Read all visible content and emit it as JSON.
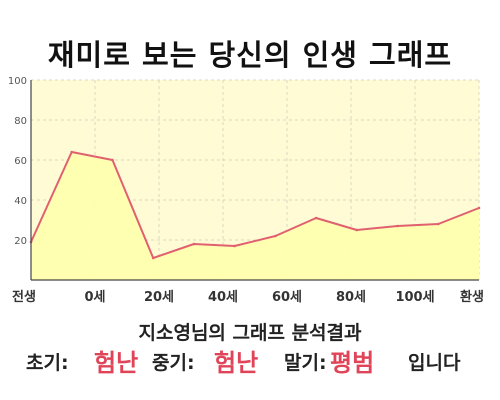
{
  "title": "재미로 보는 당신의 인생 그래프",
  "chart_data": {
    "type": "area",
    "x_labels": [
      "전생",
      "0세",
      "20세",
      "40세",
      "60세",
      "80세",
      "100세",
      "환생"
    ],
    "y_ticks": [
      20,
      40,
      60,
      80,
      100
    ],
    "ylim": [
      0,
      100
    ],
    "grid": true,
    "series": [
      {
        "values": [
          19,
          64,
          60,
          11,
          18,
          17,
          22,
          31,
          25,
          27,
          28,
          36
        ]
      }
    ],
    "colors": {
      "line": "#e06070",
      "fill": "#ffffb0",
      "plot_bg": "#fffbd5",
      "grid": "#d8d8c0"
    }
  },
  "result": {
    "heading": "지소영님의 그래프 분석결과",
    "early_label": "초기:",
    "early_value": "험난",
    "mid_label": "중기:",
    "mid_value": "험난",
    "late_label": "말기:",
    "late_value": "평범",
    "suffix": "입니다",
    "value_color": "#e04458"
  }
}
